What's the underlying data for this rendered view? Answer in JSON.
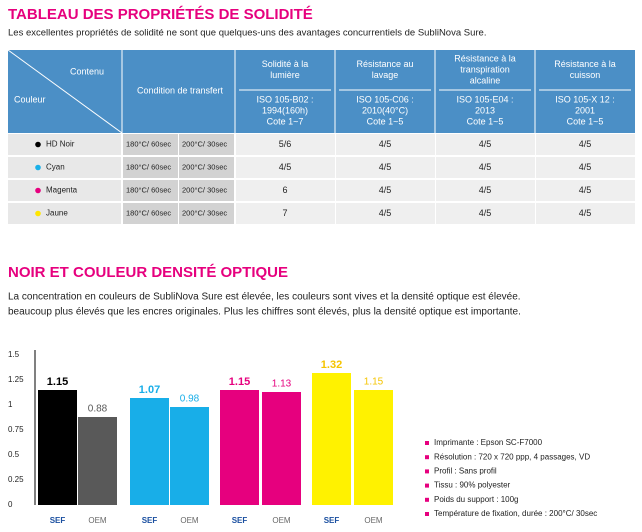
{
  "header": {
    "title": "TABLEAU DES PROPRIÉTÉS DE SOLIDITÉ",
    "subtitle": "Les excellentes propriétés de solidité ne sont que quelques-uns des avantages concurrentiels de SubliNova Sure."
  },
  "table": {
    "corner_top": "Contenu",
    "corner_bottom": "Couleur",
    "condition_header": "Condition de transfert",
    "columns": [
      {
        "title": [
          "Solidité à la",
          "lumière"
        ],
        "standard": [
          "ISO 105-B02 :",
          "1994(160h)",
          "Cote 1~7"
        ]
      },
      {
        "title": [
          "Résistance au",
          "lavage"
        ],
        "standard": [
          "ISO 105-C06 :",
          "2010(40°C)",
          "Cote 1~5"
        ]
      },
      {
        "title": [
          "Résistance à la",
          "transpiration",
          "alcaline"
        ],
        "standard": [
          "ISO 105-E04 :",
          "2013",
          "Cote 1~5"
        ]
      },
      {
        "title": [
          "Résistance à la",
          "cuisson"
        ],
        "standard": [
          "ISO 105-X 12 :",
          "2001",
          "Cote 1~5"
        ]
      }
    ],
    "rows": [
      {
        "color": "HD Noir",
        "dot": "#000000",
        "conditions": [
          "180°C/ 60sec",
          "200°C/ 30sec"
        ],
        "values": [
          "5/6",
          "4/5",
          "4/5",
          "4/5"
        ]
      },
      {
        "color": "Cyan",
        "dot": "#1ab0e8",
        "conditions": [
          "180°C/ 60sec",
          "200°C/ 30sec"
        ],
        "values": [
          "4/5",
          "4/5",
          "4/5",
          "4/5"
        ]
      },
      {
        "color": "Magenta",
        "dot": "#e6007e",
        "conditions": [
          "180°C/ 60sec",
          "200°C/ 30sec"
        ],
        "values": [
          "6",
          "4/5",
          "4/5",
          "4/5"
        ]
      },
      {
        "color": "Jaune",
        "dot": "#ffe600",
        "conditions": [
          "180°C/ 60sec",
          "200°C/ 30sec"
        ],
        "values": [
          "7",
          "4/5",
          "4/5",
          "4/5"
        ]
      }
    ]
  },
  "section2": {
    "title": "NOIR ET COULEUR DENSITÉ OPTIQUE",
    "text": [
      "La concentration en couleurs de SubliNova Sure est élevée, les couleurs sont vives et la densité optique est élevée.",
      "beaucoup plus élevés que les encres originales. Plus les chiffres sont élevés, plus la densité optique est importante."
    ]
  },
  "chart_data": {
    "type": "bar",
    "categories": [
      "SEF",
      "OEM",
      "SEF",
      "OEM",
      "SEF",
      "OEM",
      "SEF",
      "OEM"
    ],
    "values": [
      1.15,
      0.88,
      1.07,
      0.98,
      1.15,
      1.13,
      1.32,
      1.15
    ],
    "colors": [
      "#000000",
      "#595959",
      "#18aee8",
      "#18aee8",
      "#e6007e",
      "#e6007e",
      "#fff200",
      "#fff200"
    ],
    "ylim": [
      0,
      1.5
    ],
    "yticks": [
      0,
      0.25,
      0.5,
      0.75,
      1,
      1.25,
      1.5
    ],
    "grid": false
  },
  "notes": [
    "Imprimante : Epson SC-F7000",
    "Résolution : 720 x 720 ppp, 4 passages, VD",
    "Profil : Sans profil",
    "Tissu : 90% polyester",
    "Poids du support : 100g",
    "Température de fixation, durée : 200°C/ 30sec"
  ]
}
